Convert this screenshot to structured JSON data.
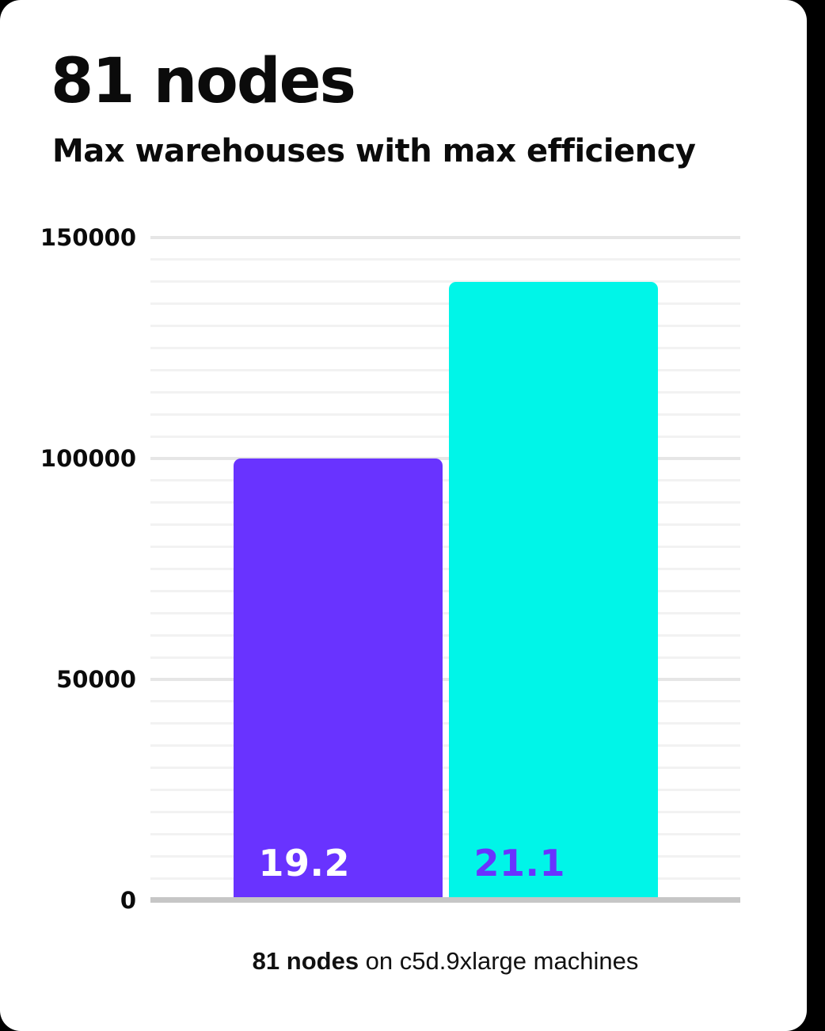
{
  "page": {
    "background_color": "#000000",
    "card_color": "#ffffff"
  },
  "header": {
    "title": "81 nodes",
    "subtitle": "Max warehouses with max efficiency"
  },
  "caption": {
    "bold": "81 nodes",
    "rest": " on c5d.9xlarge machines"
  },
  "chart_data": {
    "type": "bar",
    "title": "81 nodes",
    "subtitle": "Max warehouses with max efficiency",
    "caption": "81 nodes on c5d.9xlarge machines",
    "categories": [
      "19.2",
      "21.1"
    ],
    "values": [
      100000,
      140000
    ],
    "series": [
      {
        "name": "19.2",
        "value": 100000,
        "bar_color": "#6933ff",
        "label_color": "#ffffff"
      },
      {
        "name": "21.1",
        "value": 140000,
        "bar_color": "#00f5e8",
        "label_color": "#6933ff"
      }
    ],
    "xlabel": "",
    "ylabel": "",
    "ylim": [
      0,
      150000
    ],
    "yticks": [
      0,
      50000,
      100000,
      150000
    ],
    "minor_gridline_step": 5000,
    "grid": true,
    "legend_position": "none",
    "baseline_color": "#c6c6c6",
    "major_gridline_color": "#e6e6e6",
    "minor_gridline_color": "#f2f2f2"
  }
}
